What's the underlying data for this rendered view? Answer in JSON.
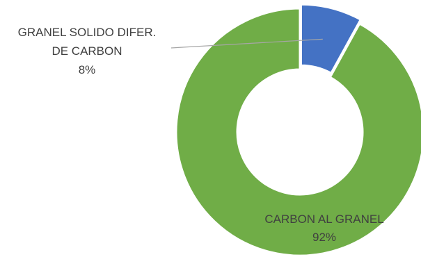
{
  "chart_data": {
    "type": "pie",
    "variant": "doughnut",
    "categories": [
      "GRANEL SOLIDO DIFER. DE CARBON",
      "CARBON AL GRANEL"
    ],
    "values": [
      8,
      92
    ],
    "colors": [
      "#4472C4",
      "#70AD47"
    ],
    "data_labels": [
      {
        "lines": [
          "GRANEL SOLIDO DIFER.",
          "DE CARBON"
        ],
        "percent": "8%"
      },
      {
        "lines": [
          "CARBON AL GRANEL"
        ],
        "percent": "92%"
      }
    ],
    "start_angle_deg": 0,
    "direction": "clockwise",
    "legend": "none"
  }
}
